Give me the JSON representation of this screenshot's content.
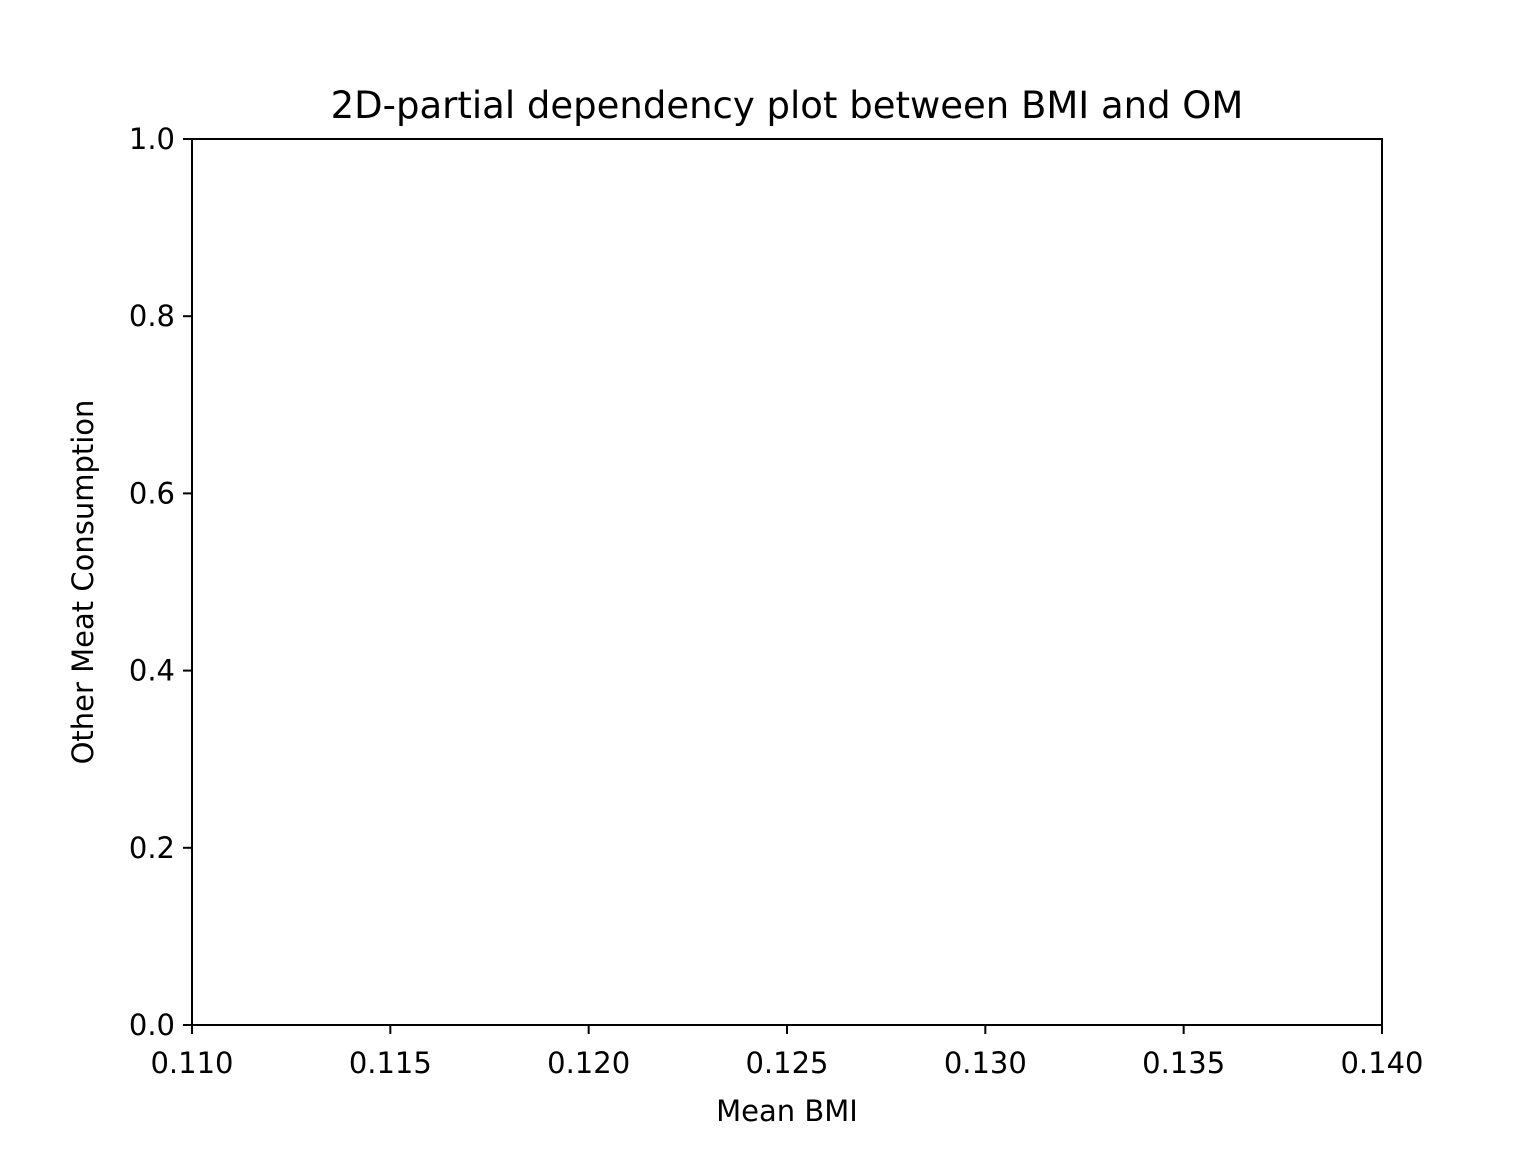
{
  "chart_data": {
    "type": "heatmap",
    "title": "2D-partial dependency plot between BMI and OM",
    "xlabel": "Mean BMI",
    "ylabel": "Other Meat Consumption",
    "xlim": [
      0.11,
      0.14
    ],
    "ylim": [
      0.0,
      1.0
    ],
    "x_ticks": [
      0.11,
      0.115,
      0.12,
      0.125,
      0.13,
      0.135,
      0.14
    ],
    "x_tick_labels": [
      "0.110",
      "0.115",
      "0.120",
      "0.125",
      "0.130",
      "0.135",
      "0.140"
    ],
    "y_ticks": [
      0.0,
      0.2,
      0.4,
      0.6,
      0.8,
      1.0
    ],
    "y_tick_labels": [
      "0.0",
      "0.2",
      "0.4",
      "0.6",
      "0.8",
      "1.0"
    ],
    "grid": false,
    "values": [],
    "axis_color": "#000000",
    "background_color": "#ffffff"
  }
}
